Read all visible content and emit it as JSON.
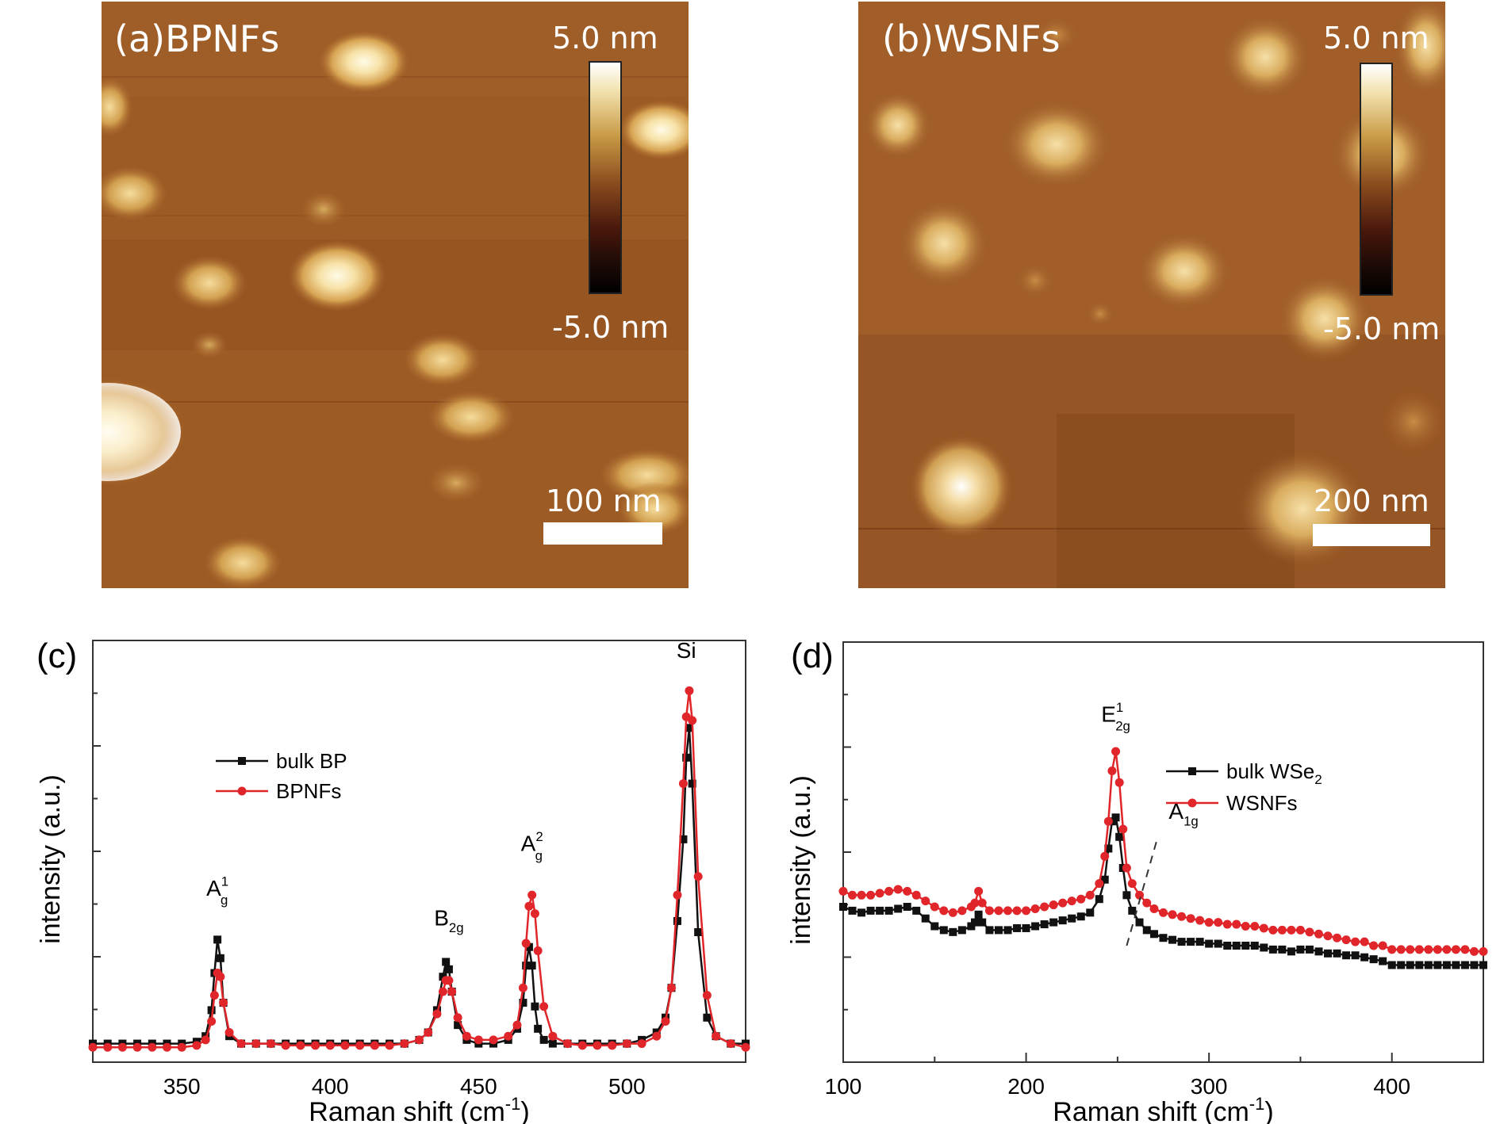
{
  "afm_panels": [
    {
      "label": "(a)BPNFs",
      "colorbar_max": "5.0 nm",
      "colorbar_min": "-5.0 nm",
      "scalebar": "100 nm"
    },
    {
      "label": "(b)WSNFs",
      "colorbar_max": "5.0 nm",
      "colorbar_min": "-5.0 nm",
      "scalebar": "200 nm"
    }
  ],
  "colors": {
    "bulk": "#111111",
    "nanoflakes": "#e0262a"
  },
  "chart_data": [
    {
      "panel_label": "(c)",
      "type": "line",
      "xlabel": "Raman shift (cm",
      "xlabel_sup": "-1",
      "xlabel_close": ")",
      "ylabel": "intensity (a.u.)",
      "xlim": [
        320,
        540
      ],
      "ylim": [
        0,
        1.05
      ],
      "xticks": [
        350,
        400,
        450,
        500
      ],
      "grid": false,
      "legend_position": "upper-left",
      "peaks": [
        {
          "label": "A",
          "sub": "g",
          "sup": "1",
          "x": 362,
          "y": 0.41
        },
        {
          "label": "B",
          "sub": "2g",
          "sup": "",
          "x": 440,
          "y": 0.33
        },
        {
          "label": "A",
          "sub": "g",
          "sup": "2",
          "x": 468,
          "y": 0.53
        },
        {
          "label": "Si",
          "sub": "",
          "sup": "",
          "x": 520,
          "y": 1.05
        }
      ],
      "series": [
        {
          "name": "bulk BP",
          "color": "#111111",
          "marker": "square",
          "x": [
            320,
            325,
            330,
            335,
            340,
            345,
            350,
            355,
            358,
            360,
            361,
            362,
            363,
            364,
            366,
            370,
            375,
            380,
            385,
            390,
            395,
            400,
            405,
            410,
            415,
            420,
            425,
            430,
            433,
            436,
            438,
            439,
            440,
            441,
            443,
            446,
            450,
            455,
            460,
            463,
            465,
            466,
            467,
            468,
            469,
            470,
            472,
            475,
            480,
            485,
            490,
            495,
            500,
            505,
            510,
            513,
            515,
            517,
            519,
            520,
            521,
            522,
            524,
            527,
            530,
            535,
            540
          ],
          "y": [
            0.05,
            0.05,
            0.05,
            0.05,
            0.05,
            0.05,
            0.05,
            0.055,
            0.07,
            0.14,
            0.24,
            0.33,
            0.28,
            0.16,
            0.07,
            0.05,
            0.05,
            0.05,
            0.05,
            0.05,
            0.05,
            0.05,
            0.05,
            0.05,
            0.05,
            0.05,
            0.05,
            0.06,
            0.08,
            0.14,
            0.23,
            0.27,
            0.25,
            0.19,
            0.1,
            0.06,
            0.05,
            0.05,
            0.06,
            0.09,
            0.16,
            0.26,
            0.31,
            0.26,
            0.15,
            0.09,
            0.06,
            0.05,
            0.05,
            0.05,
            0.05,
            0.05,
            0.05,
            0.06,
            0.08,
            0.12,
            0.2,
            0.38,
            0.6,
            0.82,
            0.9,
            0.75,
            0.35,
            0.12,
            0.07,
            0.05,
            0.05
          ]
        },
        {
          "name": "BPNFs",
          "color": "#e0262a",
          "marker": "circle",
          "x": [
            320,
            325,
            330,
            335,
            340,
            345,
            350,
            355,
            358,
            360,
            361,
            362,
            363,
            364,
            366,
            370,
            375,
            380,
            385,
            390,
            395,
            400,
            405,
            410,
            415,
            420,
            425,
            430,
            433,
            436,
            438,
            439,
            440,
            441,
            443,
            446,
            450,
            455,
            460,
            463,
            465,
            466,
            467,
            468,
            469,
            470,
            472,
            475,
            480,
            485,
            490,
            495,
            500,
            505,
            510,
            513,
            515,
            517,
            519,
            520,
            521,
            522,
            524,
            527,
            530,
            535,
            540
          ],
          "y": [
            0.04,
            0.04,
            0.04,
            0.04,
            0.04,
            0.04,
            0.04,
            0.045,
            0.06,
            0.11,
            0.18,
            0.24,
            0.23,
            0.16,
            0.08,
            0.05,
            0.05,
            0.05,
            0.045,
            0.045,
            0.045,
            0.045,
            0.045,
            0.045,
            0.045,
            0.045,
            0.05,
            0.06,
            0.08,
            0.13,
            0.19,
            0.22,
            0.22,
            0.19,
            0.12,
            0.07,
            0.06,
            0.06,
            0.07,
            0.1,
            0.2,
            0.32,
            0.42,
            0.45,
            0.4,
            0.3,
            0.15,
            0.07,
            0.05,
            0.045,
            0.045,
            0.045,
            0.05,
            0.05,
            0.07,
            0.11,
            0.2,
            0.45,
            0.75,
            0.93,
            1.0,
            0.92,
            0.5,
            0.18,
            0.07,
            0.05,
            0.04
          ]
        }
      ]
    },
    {
      "panel_label": "(d)",
      "type": "line",
      "xlabel": "Raman shift (cm",
      "xlabel_sup": "-1",
      "xlabel_close": ")",
      "ylabel": "intensity (a.u.)",
      "xlim": [
        100,
        450
      ],
      "ylim": [
        0,
        1.0
      ],
      "xticks": [
        100,
        200,
        300,
        400
      ],
      "grid": false,
      "legend_position": "upper-right",
      "peaks": [
        {
          "label": "E",
          "sub": "2g",
          "sup": "1",
          "x": 249,
          "y": 0.84
        },
        {
          "label": "A",
          "sub": "1g",
          "sup": "",
          "x": 278,
          "y": 0.59
        }
      ],
      "series": [
        {
          "name": "bulk WSe",
          "name_sub": "2",
          "color": "#111111",
          "marker": "square",
          "x": [
            100,
            105,
            110,
            115,
            120,
            125,
            130,
            135,
            140,
            145,
            150,
            155,
            160,
            165,
            170,
            172,
            174,
            176,
            180,
            185,
            190,
            195,
            200,
            205,
            210,
            215,
            220,
            225,
            230,
            235,
            240,
            243,
            245,
            247,
            249,
            251,
            253,
            255,
            258,
            262,
            266,
            270,
            275,
            280,
            285,
            290,
            295,
            300,
            305,
            310,
            315,
            320,
            325,
            330,
            335,
            340,
            345,
            350,
            355,
            360,
            365,
            370,
            375,
            380,
            385,
            390,
            395,
            400,
            405,
            410,
            415,
            420,
            425,
            430,
            435,
            440,
            445,
            450
          ],
          "y": [
            0.4,
            0.39,
            0.385,
            0.39,
            0.39,
            0.39,
            0.395,
            0.4,
            0.39,
            0.37,
            0.35,
            0.34,
            0.335,
            0.34,
            0.35,
            0.36,
            0.38,
            0.36,
            0.34,
            0.34,
            0.34,
            0.345,
            0.345,
            0.35,
            0.355,
            0.36,
            0.365,
            0.37,
            0.375,
            0.385,
            0.42,
            0.47,
            0.55,
            0.62,
            0.63,
            0.58,
            0.5,
            0.43,
            0.39,
            0.36,
            0.34,
            0.33,
            0.32,
            0.315,
            0.31,
            0.31,
            0.31,
            0.305,
            0.305,
            0.3,
            0.3,
            0.3,
            0.3,
            0.295,
            0.29,
            0.29,
            0.285,
            0.29,
            0.29,
            0.285,
            0.28,
            0.28,
            0.275,
            0.275,
            0.27,
            0.265,
            0.26,
            0.25,
            0.25,
            0.25,
            0.25,
            0.25,
            0.25,
            0.25,
            0.25,
            0.25,
            0.25,
            0.25
          ]
        },
        {
          "name": "WSNFs",
          "color": "#e0262a",
          "marker": "circle",
          "x": [
            100,
            105,
            110,
            115,
            120,
            125,
            130,
            135,
            140,
            145,
            150,
            155,
            160,
            165,
            170,
            172,
            174,
            176,
            180,
            185,
            190,
            195,
            200,
            205,
            210,
            215,
            220,
            225,
            230,
            235,
            240,
            243,
            245,
            247,
            249,
            251,
            253,
            255,
            258,
            262,
            266,
            270,
            275,
            280,
            285,
            290,
            295,
            300,
            305,
            310,
            315,
            320,
            325,
            330,
            335,
            340,
            345,
            350,
            355,
            360,
            365,
            370,
            375,
            380,
            385,
            390,
            395,
            400,
            405,
            410,
            415,
            420,
            425,
            430,
            435,
            440,
            445,
            450
          ],
          "y": [
            0.44,
            0.43,
            0.43,
            0.43,
            0.435,
            0.44,
            0.445,
            0.44,
            0.43,
            0.415,
            0.4,
            0.39,
            0.385,
            0.39,
            0.4,
            0.41,
            0.44,
            0.41,
            0.39,
            0.39,
            0.39,
            0.39,
            0.39,
            0.395,
            0.4,
            0.405,
            0.41,
            0.415,
            0.42,
            0.43,
            0.46,
            0.53,
            0.62,
            0.75,
            0.8,
            0.72,
            0.6,
            0.5,
            0.46,
            0.43,
            0.41,
            0.395,
            0.385,
            0.38,
            0.375,
            0.37,
            0.365,
            0.36,
            0.36,
            0.355,
            0.355,
            0.35,
            0.35,
            0.345,
            0.34,
            0.34,
            0.34,
            0.34,
            0.335,
            0.33,
            0.325,
            0.32,
            0.315,
            0.31,
            0.31,
            0.3,
            0.3,
            0.29,
            0.29,
            0.29,
            0.29,
            0.29,
            0.29,
            0.29,
            0.29,
            0.29,
            0.285,
            0.285
          ]
        }
      ]
    }
  ]
}
